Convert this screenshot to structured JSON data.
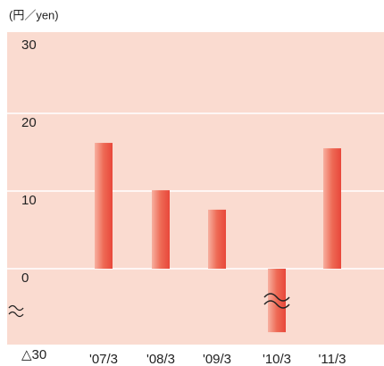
{
  "chart_data": {
    "type": "bar",
    "unit_label": "(円／yen)",
    "categories": [
      "'07/3",
      "'08/3",
      "'09/3",
      "'10/3",
      "'11/3"
    ],
    "values": [
      16.2,
      10.1,
      7.6,
      -22,
      15.5
    ],
    "color": "#e8473a",
    "ylim": [
      -30,
      30
    ],
    "yticks": [
      {
        "value": -30,
        "label": "△30"
      },
      0,
      10,
      20,
      30
    ],
    "grid": true,
    "axis_break": true
  }
}
